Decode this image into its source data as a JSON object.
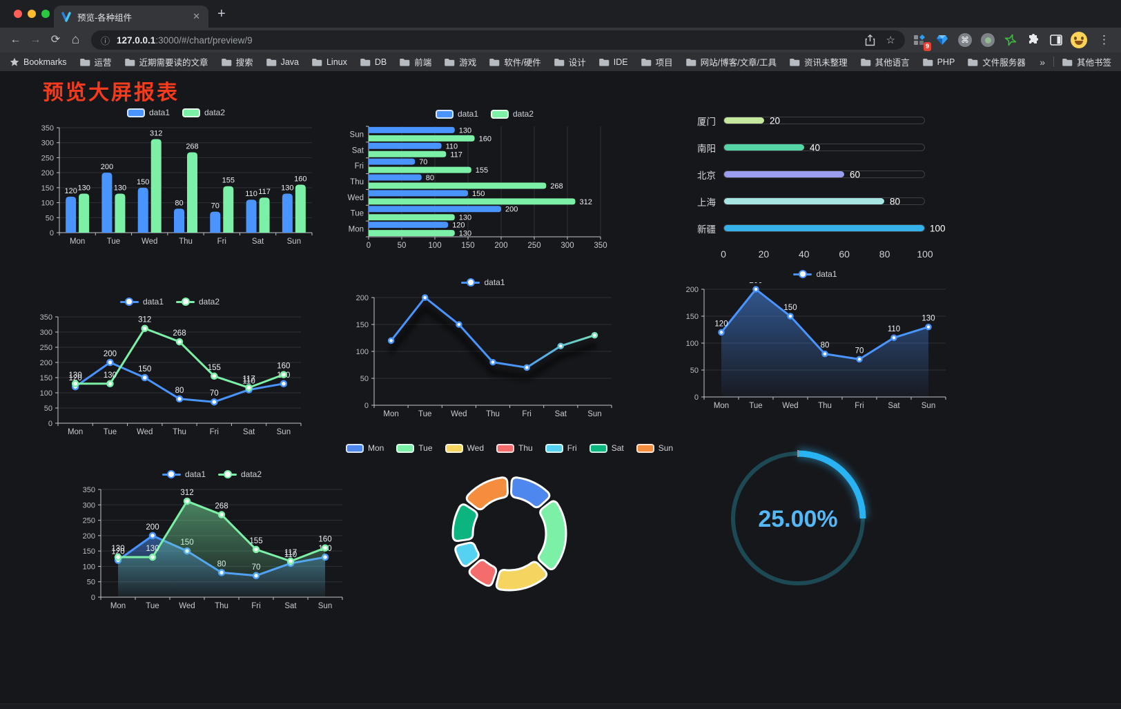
{
  "browser": {
    "tab_title": "预览-各种组件",
    "url_host": "127.0.0.1",
    "url_rest": ":3000/#/chart/preview/9",
    "bookmarks_label": "Bookmarks",
    "folders": [
      "运营",
      "近期需要读的文章",
      "搜索",
      "Java",
      "Linux",
      "DB",
      "前端",
      "游戏",
      "软件/硬件",
      "设计",
      "IDE",
      "项目",
      "网站/博客/文章/工具",
      "资讯未整理",
      "其他语言",
      "PHP",
      "文件服务器"
    ],
    "overflow": "»",
    "other_bookmarks": "其他书签",
    "ext_badge": "9"
  },
  "page": {
    "title": "预览大屏报表"
  },
  "chart_data": [
    {
      "name": "grouped-bar",
      "type": "bar",
      "categories": [
        "Mon",
        "Tue",
        "Wed",
        "Thu",
        "Fri",
        "Sat",
        "Sun"
      ],
      "series": [
        {
          "name": "data1",
          "color": "#4a94ff",
          "values": [
            120,
            200,
            150,
            80,
            70,
            110,
            130
          ]
        },
        {
          "name": "data2",
          "color": "#7cf0a6",
          "values": [
            130,
            130,
            312,
            268,
            155,
            117,
            160
          ]
        }
      ],
      "ylim": [
        0,
        350
      ],
      "ystep": 50,
      "labels": true,
      "legend_position": "top",
      "grid": true
    },
    {
      "name": "grouped-bar-horizontal",
      "type": "barh",
      "categories": [
        "Mon",
        "Tue",
        "Wed",
        "Thu",
        "Fri",
        "Sat",
        "Sun"
      ],
      "series": [
        {
          "name": "data1",
          "color": "#4a94ff",
          "values": [
            120,
            200,
            150,
            80,
            70,
            110,
            130
          ]
        },
        {
          "name": "data2",
          "color": "#7cf0a6",
          "values": [
            130,
            130,
            312,
            268,
            155,
            117,
            160
          ]
        }
      ],
      "xlim": [
        0,
        350
      ],
      "xstep": 50,
      "labels": true,
      "legend_position": "top",
      "grid": true
    },
    {
      "name": "city-progress",
      "type": "progress",
      "max": 100,
      "ticks": [
        0,
        20,
        40,
        60,
        80,
        100
      ],
      "items": [
        {
          "label": "厦门",
          "value": 20,
          "color": "#c6e89e"
        },
        {
          "label": "南阳",
          "value": 40,
          "color": "#55d5a5"
        },
        {
          "label": "北京",
          "value": 60,
          "color": "#9b9ef0"
        },
        {
          "label": "上海",
          "value": 80,
          "color": "#a5e5e2"
        },
        {
          "label": "新疆",
          "value": 100,
          "color": "#35b3e8"
        }
      ]
    },
    {
      "name": "two-series-line",
      "type": "line",
      "categories": [
        "Mon",
        "Tue",
        "Wed",
        "Thu",
        "Fri",
        "Sat",
        "Sun"
      ],
      "series": [
        {
          "name": "data1",
          "color": "#4a94ff",
          "values": [
            120,
            200,
            150,
            80,
            70,
            110,
            130
          ]
        },
        {
          "name": "data2",
          "color": "#7cf0a6",
          "values": [
            130,
            130,
            312,
            268,
            155,
            117,
            160
          ]
        }
      ],
      "ylim": [
        0,
        350
      ],
      "ystep": 50,
      "labels": true,
      "marker": 4,
      "legend_position": "top",
      "grid": true
    },
    {
      "name": "gradient-line",
      "type": "line",
      "categories": [
        "Mon",
        "Tue",
        "Wed",
        "Thu",
        "Fri",
        "Sat",
        "Sun"
      ],
      "series": [
        {
          "name": "data1",
          "color": "#4a94ff",
          "values": [
            120,
            200,
            150,
            80,
            70,
            110,
            130
          ]
        }
      ],
      "gradient": [
        "#4a94ff",
        "#7cf0a6"
      ],
      "shadow": true,
      "ylim": [
        0,
        200
      ],
      "ystep": 50,
      "labels": false,
      "marker": 3.5,
      "legend_position": "top",
      "grid": true
    },
    {
      "name": "area-line",
      "type": "line",
      "categories": [
        "Mon",
        "Tue",
        "Wed",
        "Thu",
        "Fri",
        "Sat",
        "Sun"
      ],
      "series": [
        {
          "name": "data1",
          "color": "#4a94ff",
          "values": [
            120,
            200,
            150,
            80,
            70,
            110,
            130
          ],
          "area": true
        }
      ],
      "ylim": [
        0,
        200
      ],
      "ystep": 50,
      "labels": true,
      "marker": 3.5,
      "legend_position": "top",
      "grid": true
    },
    {
      "name": "two-series-area-line",
      "type": "line",
      "categories": [
        "Mon",
        "Tue",
        "Wed",
        "Thu",
        "Fri",
        "Sat",
        "Sun"
      ],
      "series": [
        {
          "name": "data1",
          "color": "#4a94ff",
          "values": [
            120,
            200,
            150,
            80,
            70,
            110,
            130
          ],
          "area": true
        },
        {
          "name": "data2",
          "color": "#7cf0a6",
          "values": [
            130,
            130,
            312,
            268,
            155,
            117,
            160
          ],
          "area": true
        }
      ],
      "ylim": [
        0,
        350
      ],
      "ystep": 50,
      "labels": true,
      "marker": 4,
      "legend_position": "top",
      "grid": true
    },
    {
      "name": "weekday-donut",
      "type": "pie",
      "categories": [
        "Mon",
        "Tue",
        "Wed",
        "Thu",
        "Fri",
        "Sat",
        "Sun"
      ],
      "values": [
        120,
        200,
        150,
        80,
        70,
        110,
        130
      ],
      "colors": [
        "#4e88ef",
        "#7cf0a6",
        "#f5d55f",
        "#f56c6c",
        "#55d1f2",
        "#0cb57f",
        "#f58d3e"
      ],
      "legend_position": "top"
    },
    {
      "name": "percent-gauge",
      "type": "gauge",
      "value": 25,
      "display": "25.00%",
      "color": "#2ab3f2",
      "track": "#1d4954",
      "text_color": "#55b8f6"
    }
  ]
}
